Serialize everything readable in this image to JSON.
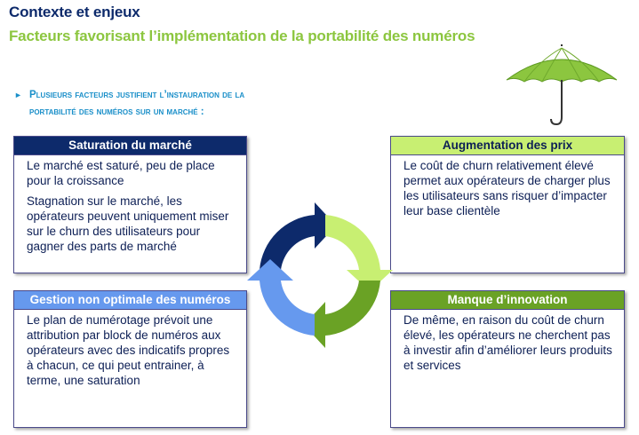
{
  "header": {
    "title": "Contexte et enjeux",
    "subtitle": "Facteurs favorisant l’implémentation de la portabilité des numéros"
  },
  "intro": {
    "bullet": "►",
    "text_line1": "Plusieurs facteurs justifient l’instauration de la",
    "text_line2": "portabilité des numéros sur un marché :"
  },
  "boxes": {
    "saturation": {
      "title": "Saturation du marché",
      "para1": "Le marché est saturé, peu de place pour la croissance",
      "para2": "Stagnation sur le marché, les opérateurs peuvent uniquement miser sur le churn des utilisateurs pour gagner des parts de marché"
    },
    "prix": {
      "title": "Augmentation des prix",
      "para1": "Le coût de churn relativement élevé permet aux opérateurs de charger plus les utilisateurs sans risquer d’impacter leur base clientèle"
    },
    "gestion": {
      "title": "Gestion non optimale des numéros",
      "para1": "Le plan de numérotage prévoit une attribution par block de numéros aux opérateurs avec des indicatifs propres à chacun, ce qui peut entrainer, à terme, une saturation"
    },
    "innovation": {
      "title": "Manque d’innovation",
      "para1": "De même, en raison du coût de churn élevé, les opérateurs ne cherchent pas à investir afin d’améliorer leurs produits et services"
    }
  },
  "colors": {
    "navy": "#0d2a6b",
    "light_green": "#c8ef72",
    "light_blue": "#6699ee",
    "green": "#6aa225",
    "umbrella_green": "#8cc63f"
  },
  "icons": {
    "umbrella": "umbrella-icon",
    "cycle": "cycle-arrows-icon"
  }
}
